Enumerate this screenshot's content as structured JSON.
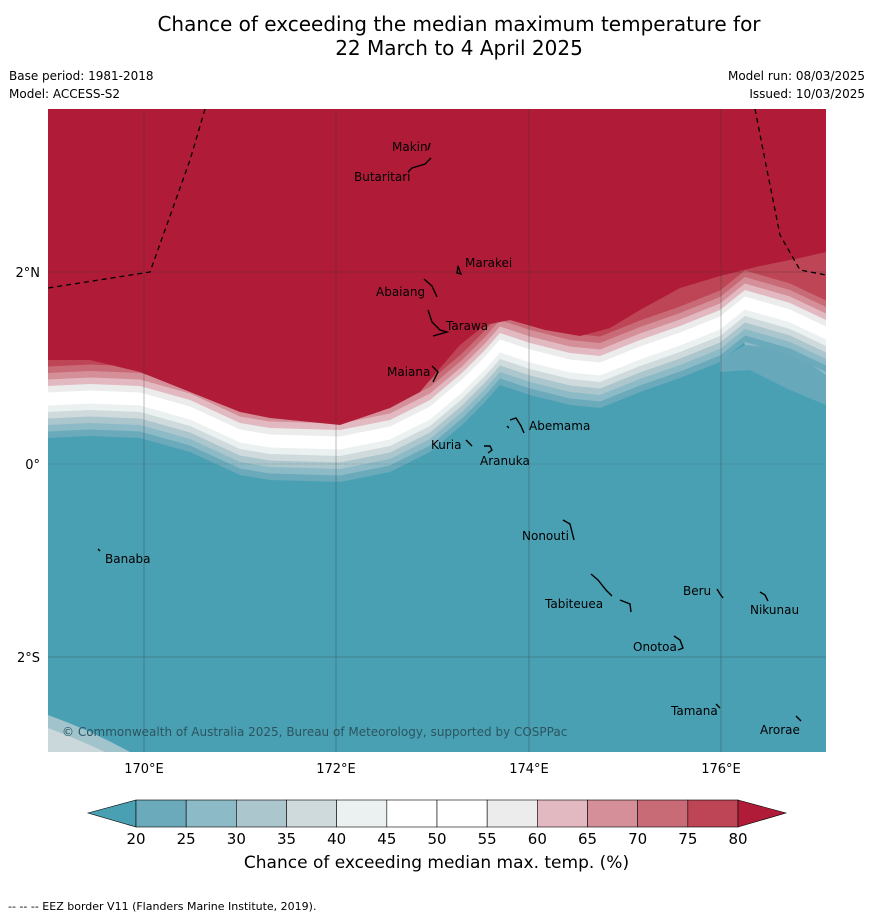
{
  "header": {
    "title_line1": "Chance of exceeding the median maximum temperature for",
    "title_line2": "22 March to 4 April 2025",
    "base_period": "Base period: 1981-2018",
    "model": "Model: ACCESS-S2",
    "model_run": "Model run: 08/03/2025",
    "issued": "Issued: 10/03/2025"
  },
  "axes": {
    "lon_ticks": [
      "170°E",
      "172°E",
      "174°E",
      "176°E"
    ],
    "lat_ticks": [
      "2°N",
      "0°",
      "2°S"
    ]
  },
  "places": [
    {
      "name": "Makin"
    },
    {
      "name": "Butaritari"
    },
    {
      "name": "Marakei"
    },
    {
      "name": "Abaiang"
    },
    {
      "name": "Tarawa"
    },
    {
      "name": "Maiana"
    },
    {
      "name": "Abemama"
    },
    {
      "name": "Kuria"
    },
    {
      "name": "Aranuka"
    },
    {
      "name": "Nonouti"
    },
    {
      "name": "Banaba"
    },
    {
      "name": "Beru"
    },
    {
      "name": "Tabiteuea"
    },
    {
      "name": "Nikunau"
    },
    {
      "name": "Onotoa"
    },
    {
      "name": "Tamana"
    },
    {
      "name": "Arorae"
    }
  ],
  "copyright": "© Commonwealth of Australia 2025, Bureau of Meteorology, supported by COSPPac",
  "colorbar": {
    "ticks": [
      "20",
      "25",
      "30",
      "35",
      "40",
      "45",
      "50",
      "55",
      "60",
      "65",
      "70",
      "75",
      "80"
    ],
    "colors": [
      "#6aaabb",
      "#8cbac6",
      "#abc6cd",
      "#cfdadd",
      "#ebf0f1",
      "#ffffff",
      "#ffffff",
      "#ececec",
      "#e2b9c0",
      "#d48f99",
      "#c96b77",
      "#bd4555"
    ],
    "under_color": "#4aa0b3",
    "over_color": "#b01c38",
    "label": "Chance of exceeding median max. temp. (%)"
  },
  "footnote": "-- -- -- EEZ border V11 (Flanders Marine Institute, 2019)."
}
